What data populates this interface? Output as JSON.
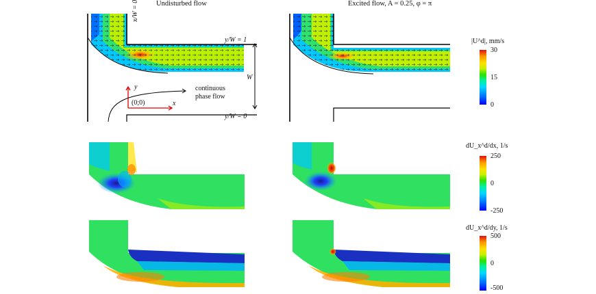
{
  "titles": {
    "left": "Undisturbed flow",
    "right": "Excited flow, A = 0.25, φ = π"
  },
  "annotations": {
    "x_over_w": "x/W = 0",
    "y_over_w_top": "y/W = 1",
    "y_over_w_bottom": "y/W = 0",
    "w_label": "W",
    "origin_label": "(0;0)",
    "x_axis": "x",
    "y_axis": "y",
    "phase_flow_line1": "continuous",
    "phase_flow_line2": "phase flow"
  },
  "colorbars": [
    {
      "label": "|U^d|, mm/s",
      "max": "30",
      "mid": "15",
      "min": "0"
    },
    {
      "label": "dU_x^d/dx, 1/s",
      "max": "250",
      "mid": "0",
      "min": "-250"
    },
    {
      "label": "dU_x^d/dy, 1/s",
      "max": "500",
      "mid": "0",
      "min": "-500"
    }
  ]
}
